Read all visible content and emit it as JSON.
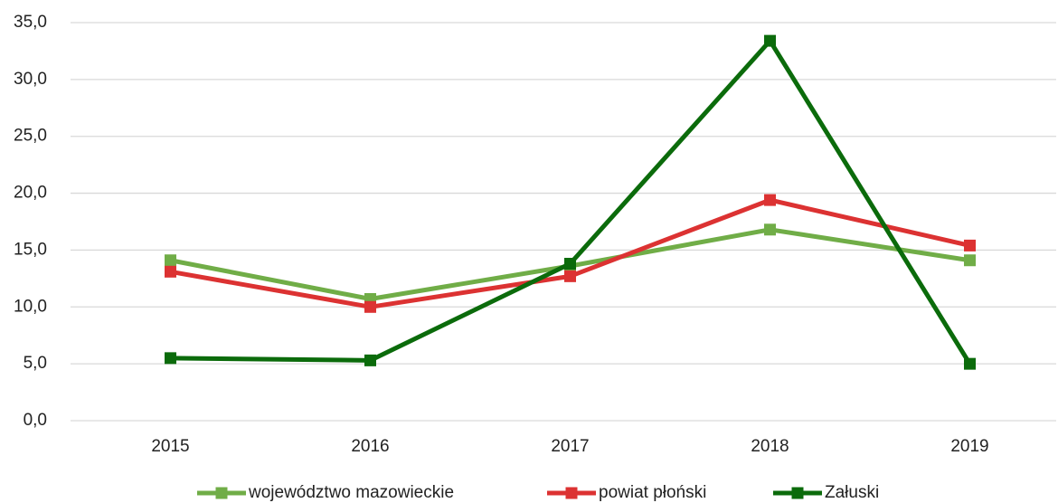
{
  "chart_data": {
    "type": "line",
    "categories": [
      "2015",
      "2016",
      "2017",
      "2018",
      "2019"
    ],
    "series": [
      {
        "name": "województwo mazowieckie",
        "color": "#70ad47",
        "values": [
          14.1,
          10.7,
          13.6,
          16.8,
          14.1
        ]
      },
      {
        "name": "powiat płoński",
        "color": "#dc3232",
        "values": [
          13.1,
          10.0,
          12.7,
          19.4,
          15.4
        ]
      },
      {
        "name": "Załuski",
        "color": "#0b6b0b",
        "values": [
          5.5,
          5.3,
          13.8,
          33.4,
          5.0
        ]
      }
    ],
    "ylim": [
      0,
      35
    ],
    "yticks": [
      {
        "value": 0,
        "label": "0,0"
      },
      {
        "value": 5,
        "label": "5,0"
      },
      {
        "value": 10,
        "label": "10,0"
      },
      {
        "value": 15,
        "label": "15,0"
      },
      {
        "value": 20,
        "label": "20,0"
      },
      {
        "value": 25,
        "label": "25,0"
      },
      {
        "value": 30,
        "label": "30,0"
      },
      {
        "value": 35,
        "label": "35,0"
      }
    ],
    "grid": true,
    "legend": "bottom"
  }
}
